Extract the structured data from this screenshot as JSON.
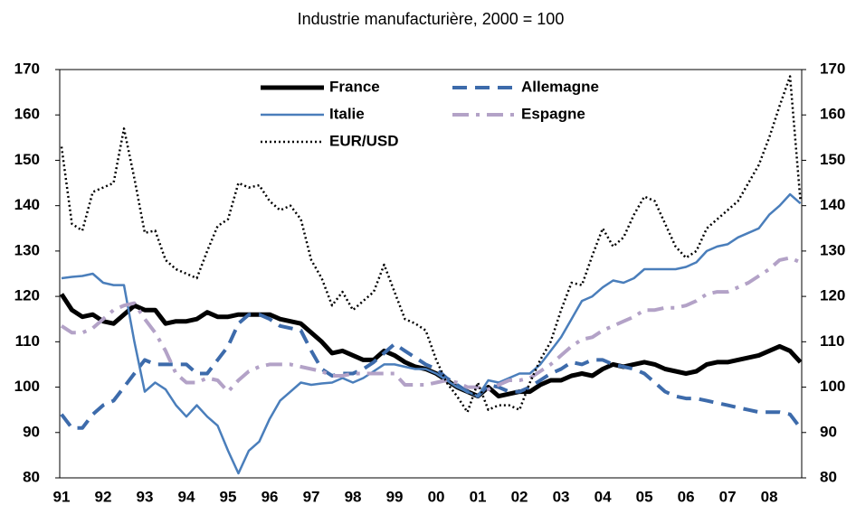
{
  "chart_data": {
    "type": "line",
    "title": "Industrie manufacturière, 2000 = 100",
    "categories": [
      "91",
      null,
      null,
      null,
      "92",
      null,
      null,
      null,
      "93",
      null,
      null,
      null,
      "94",
      null,
      null,
      null,
      "95",
      null,
      null,
      null,
      "96",
      null,
      null,
      null,
      "97",
      null,
      null,
      null,
      "98",
      null,
      null,
      null,
      "99",
      null,
      null,
      null,
      "00",
      null,
      null,
      null,
      "01",
      null,
      null,
      null,
      "02",
      null,
      null,
      null,
      "03",
      null,
      null,
      null,
      "04",
      null,
      null,
      null,
      "05",
      null,
      null,
      null,
      "06",
      null,
      null,
      null,
      "07",
      null,
      null,
      null,
      "08",
      null,
      null,
      null
    ],
    "ylim": [
      80,
      170
    ],
    "yticks": [
      80,
      90,
      100,
      110,
      120,
      130,
      140,
      150,
      160,
      170
    ],
    "y2lim": [
      80,
      170
    ],
    "y2ticks": [
      80,
      90,
      100,
      110,
      120,
      130,
      140,
      150,
      160,
      170
    ],
    "grid": false,
    "series": [
      {
        "name": "France",
        "color": "#000000",
        "style": "solid",
        "width": 5,
        "values": [
          120.5,
          117,
          115.5,
          116,
          114.5,
          114,
          116,
          118,
          117,
          117,
          114,
          114.5,
          114.5,
          115,
          116.5,
          115.5,
          115.5,
          116,
          116,
          116,
          116,
          115,
          114.5,
          114,
          112,
          110,
          107.5,
          108,
          107,
          106,
          106,
          108,
          107,
          105.5,
          104.5,
          104,
          103,
          101.5,
          100,
          99,
          98,
          100,
          98,
          98.5,
          99,
          99,
          100.5,
          101.5,
          101.5,
          102.5,
          103,
          102.5,
          104,
          105,
          104.5,
          105,
          105.5,
          105,
          104,
          103.5,
          103,
          103.5,
          105,
          105.5,
          105.5,
          106,
          106.5,
          107,
          108,
          109,
          108,
          105.5
        ]
      },
      {
        "name": "Allemagne",
        "color": "#3d6bab",
        "style": "dashed",
        "width": 4,
        "values": [
          94,
          91,
          91,
          94,
          96,
          97,
          100,
          103,
          106,
          105,
          105,
          105,
          105,
          103,
          103,
          106,
          109,
          114,
          116,
          116,
          115,
          113.5,
          113,
          112.5,
          108,
          104,
          102.5,
          103,
          103,
          104,
          105.5,
          107.5,
          109.5,
          108,
          106.5,
          105,
          104,
          102,
          100.5,
          99,
          98,
          100.5,
          100,
          99,
          99,
          100,
          101.5,
          103,
          104,
          105.5,
          105,
          106,
          106,
          105,
          104.5,
          104,
          103,
          101,
          99,
          98,
          97.5,
          97.5,
          97,
          96.5,
          96,
          95.5,
          95,
          94.5,
          94.5,
          94.5,
          94,
          91
        ]
      },
      {
        "name": "Italie",
        "color": "#4a7ebb",
        "style": "solid",
        "width": 2.5,
        "values": [
          124,
          124.3,
          124.5,
          125,
          123,
          122.5,
          122.5,
          110,
          99,
          101,
          99.5,
          96,
          93.5,
          96,
          93.5,
          91.5,
          86,
          81,
          86,
          88,
          93,
          97,
          99,
          101,
          100.5,
          100.8,
          101,
          102,
          101,
          102,
          103.5,
          105,
          105,
          104.5,
          104,
          104,
          103,
          101.5,
          100,
          99,
          98,
          101.5,
          101,
          102,
          103,
          103,
          105,
          108,
          111,
          115,
          119,
          120,
          122,
          123.5,
          123,
          124,
          126,
          126,
          126,
          126,
          126.5,
          127.5,
          130,
          131,
          131.5,
          133,
          134,
          135,
          138,
          140,
          142.5,
          140.5
        ]
      },
      {
        "name": "Espagne",
        "color": "#b3a2c7",
        "style": "dashdot",
        "width": 4,
        "values": [
          113.5,
          112,
          112,
          113,
          115,
          117,
          118,
          118.5,
          115,
          112,
          108,
          103,
          101,
          101,
          102,
          101.5,
          99,
          101.5,
          103.5,
          104.5,
          105,
          105,
          105,
          104.5,
          104,
          103.5,
          102.5,
          102.5,
          103,
          103,
          103,
          103,
          103,
          100.5,
          100.5,
          100.5,
          101,
          101.5,
          101,
          100,
          100,
          99.5,
          100.5,
          101.5,
          101.5,
          102,
          103.5,
          105,
          107,
          109,
          110.5,
          111,
          112.5,
          113.5,
          114.5,
          115.5,
          117,
          117,
          117.5,
          117.5,
          118,
          119,
          120.5,
          121,
          121,
          122,
          123,
          124.5,
          126,
          128,
          128.5,
          127.5
        ]
      },
      {
        "name": "EUR/USD",
        "color": "#000000",
        "style": "dotted",
        "width": 2.5,
        "values": [
          153,
          136,
          134.5,
          143,
          144,
          145,
          157,
          146,
          134,
          134.5,
          128,
          126,
          125,
          124,
          130,
          135.5,
          137,
          145,
          144,
          144.5,
          141,
          139,
          140,
          137,
          128,
          124,
          118,
          121,
          117,
          119,
          121,
          127,
          121,
          115,
          114,
          112.5,
          106,
          101,
          98,
          94.5,
          101,
          95,
          96,
          96,
          95,
          101,
          106,
          110,
          117,
          123,
          122.5,
          129,
          135,
          131,
          133,
          138,
          142,
          141,
          136,
          131,
          128.5,
          130,
          135,
          137,
          139,
          141,
          145,
          149,
          155,
          162,
          168.5,
          141
        ]
      }
    ]
  }
}
